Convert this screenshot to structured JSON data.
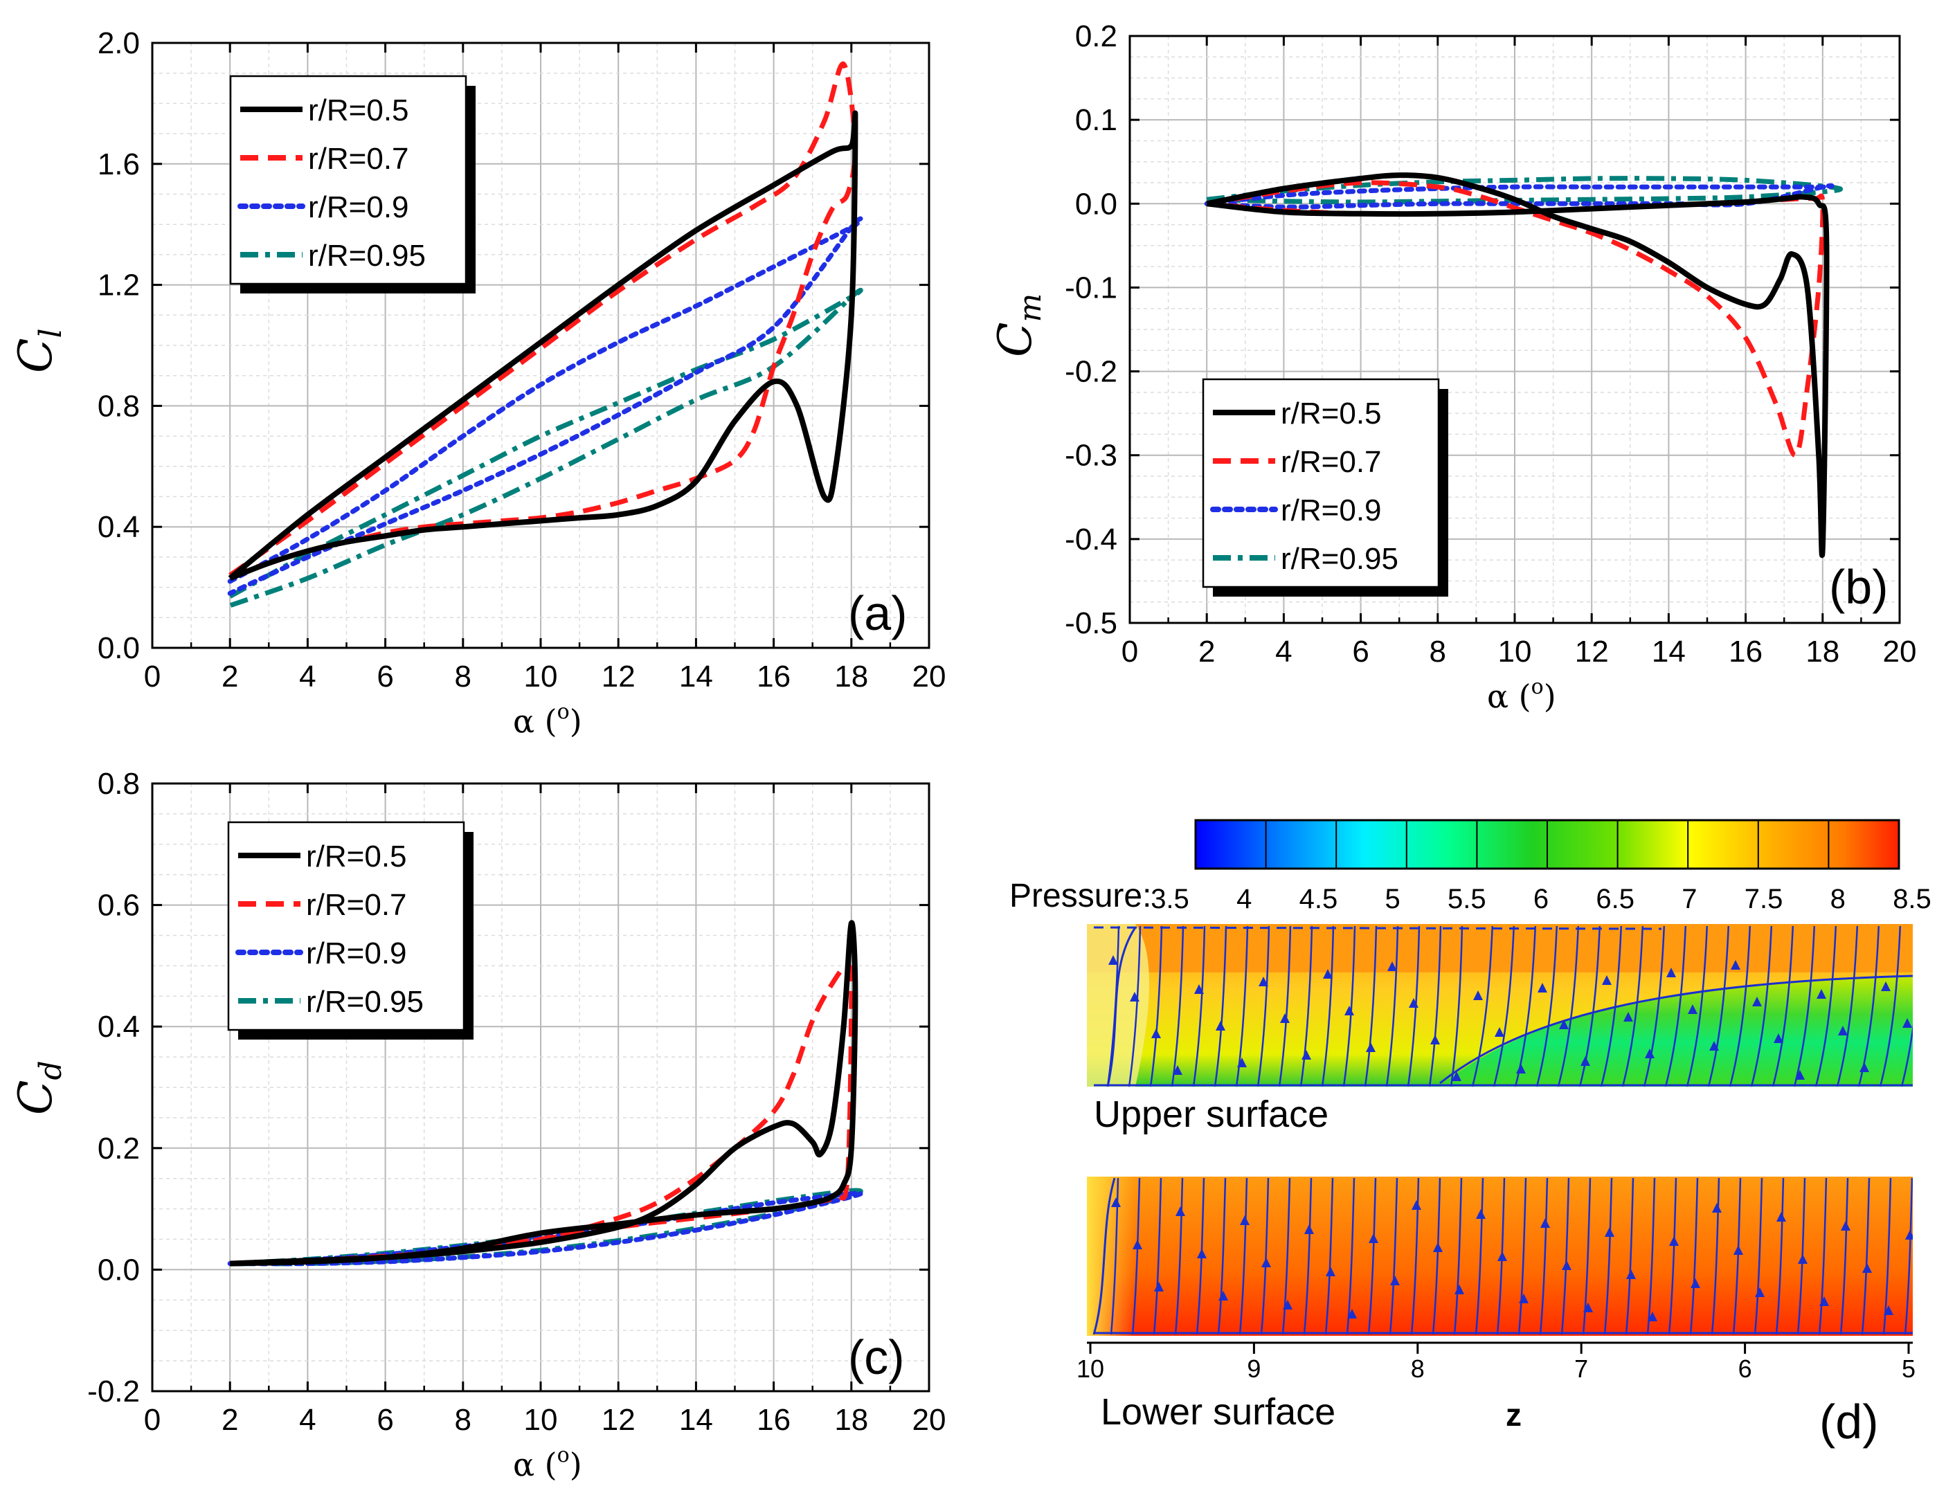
{
  "chart_data": [
    {
      "id": "a",
      "type": "line",
      "panel_label": "(a)",
      "ylabel_main": "C",
      "ylabel_sub": "l",
      "xlabel": "α (o)",
      "xlabel_main": "α (",
      "xlabel_sup": "o",
      "xlabel_close": ")",
      "xlim": [
        0,
        20
      ],
      "ylim": [
        0.0,
        2.0
      ],
      "xticks": [
        0,
        2,
        4,
        6,
        8,
        10,
        12,
        14,
        16,
        18,
        20
      ],
      "yticks": [
        "0.0",
        "0.4",
        "0.8",
        "1.2",
        "1.6",
        "2.0"
      ],
      "ytick_values": [
        0.0,
        0.4,
        0.8,
        1.2,
        1.6,
        2.0
      ],
      "legend": [
        "r/R=0.5",
        "r/R=0.7",
        "r/R=0.9",
        "r/R=0.95"
      ],
      "series": [
        {
          "name": "r/R=0.5",
          "color": "#000000",
          "style": "solid",
          "x": [
            2,
            4,
            6,
            8,
            10,
            12,
            14,
            16,
            17.5,
            18,
            18.1,
            18,
            17.6,
            17.3,
            16.6,
            16,
            15,
            14,
            13,
            12,
            11,
            10,
            9,
            8,
            7,
            6,
            5,
            4,
            3,
            2
          ],
          "y": [
            0.23,
            0.44,
            0.63,
            0.82,
            1.01,
            1.2,
            1.38,
            1.53,
            1.64,
            1.66,
            1.74,
            1.1,
            0.6,
            0.5,
            0.8,
            0.88,
            0.75,
            0.55,
            0.47,
            0.44,
            0.43,
            0.42,
            0.41,
            0.4,
            0.39,
            0.37,
            0.35,
            0.32,
            0.28,
            0.23
          ]
        },
        {
          "name": "r/R=0.7",
          "color": "#ff1a1a",
          "style": "dashed",
          "x": [
            2,
            4,
            6,
            8,
            10,
            12,
            14,
            15.5,
            16.5,
            17.3,
            17.8,
            18.1,
            17.9,
            17.5,
            17,
            16.5,
            16,
            15.5,
            15,
            14,
            13,
            12,
            11,
            10,
            9,
            8,
            7,
            6,
            5,
            4,
            3,
            2
          ],
          "y": [
            0.24,
            0.42,
            0.61,
            0.8,
            0.99,
            1.18,
            1.35,
            1.46,
            1.55,
            1.74,
            1.93,
            1.66,
            1.5,
            1.45,
            1.3,
            1.1,
            0.93,
            0.72,
            0.62,
            0.56,
            0.52,
            0.48,
            0.45,
            0.43,
            0.42,
            0.41,
            0.4,
            0.38,
            0.35,
            0.32,
            0.28,
            0.24
          ]
        },
        {
          "name": "r/R=0.9",
          "color": "#1f2fe6",
          "style": "dotted",
          "x": [
            2,
            4,
            6,
            8,
            10,
            12,
            14,
            16,
            18,
            18,
            16,
            14,
            12,
            10,
            8,
            6,
            4,
            2
          ],
          "y": [
            0.22,
            0.36,
            0.52,
            0.7,
            0.87,
            1.01,
            1.13,
            1.26,
            1.39,
            1.39,
            1.06,
            0.91,
            0.77,
            0.64,
            0.52,
            0.41,
            0.3,
            0.18
          ]
        },
        {
          "name": "r/R=0.95",
          "color": "#00807a",
          "style": "dashdot",
          "x": [
            2,
            4,
            6,
            8,
            10,
            12,
            14,
            16,
            18,
            18,
            16,
            14,
            12,
            10,
            8,
            6,
            4,
            2
          ],
          "y": [
            0.17,
            0.31,
            0.44,
            0.57,
            0.7,
            0.81,
            0.92,
            1.02,
            1.16,
            1.16,
            0.93,
            0.82,
            0.69,
            0.56,
            0.44,
            0.34,
            0.23,
            0.14
          ]
        }
      ]
    },
    {
      "id": "b",
      "type": "line",
      "panel_label": "(b)",
      "ylabel_main": "C",
      "ylabel_sub": "m",
      "xlabel": "α (o)",
      "xlabel_main": "α (",
      "xlabel_sup": "o",
      "xlabel_close": ")",
      "xlim": [
        0,
        20
      ],
      "ylim": [
        -0.5,
        0.2
      ],
      "xticks": [
        0,
        2,
        4,
        6,
        8,
        10,
        12,
        14,
        16,
        18,
        20
      ],
      "yticks": [
        "0.2",
        "0.1",
        "0.0",
        "-0.1",
        "-0.2",
        "-0.3",
        "-0.4",
        "-0.5"
      ],
      "ytick_values": [
        0.2,
        0.1,
        0.0,
        -0.1,
        -0.2,
        -0.3,
        -0.4,
        -0.5
      ],
      "legend": [
        "r/R=0.5",
        "r/R=0.7",
        "r/R=0.9",
        "r/R=0.95"
      ],
      "series": [
        {
          "name": "r/R=0.5",
          "color": "#000000",
          "style": "solid",
          "x": [
            2,
            4,
            6,
            7,
            8,
            9,
            10,
            11,
            12,
            13,
            14,
            15,
            16,
            16.5,
            16.9,
            17.2,
            17.6,
            17.9,
            18.0,
            18.1,
            17.9,
            17.5,
            17,
            16,
            14,
            12,
            10,
            8,
            6,
            4,
            2
          ],
          "y": [
            0.0,
            0.018,
            0.03,
            0.034,
            0.031,
            0.02,
            0.005,
            -0.015,
            -0.03,
            -0.045,
            -0.07,
            -0.1,
            -0.12,
            -0.12,
            -0.09,
            -0.06,
            -0.1,
            -0.3,
            -0.41,
            -0.05,
            0.0,
            0.008,
            0.006,
            0.002,
            -0.002,
            -0.006,
            -0.01,
            -0.012,
            -0.012,
            -0.01,
            0.0
          ]
        },
        {
          "name": "r/R=0.7",
          "color": "#ff1a1a",
          "style": "dashed",
          "x": [
            2,
            4,
            6,
            8,
            9,
            10,
            11,
            12,
            13,
            14,
            15,
            16,
            16.8,
            17.3,
            17.6,
            17.9,
            18.0,
            17.8,
            17,
            16,
            14,
            12,
            10,
            8,
            6,
            4,
            2
          ],
          "y": [
            0.0,
            0.015,
            0.025,
            0.02,
            0.01,
            -0.005,
            -0.02,
            -0.035,
            -0.055,
            -0.08,
            -0.11,
            -0.16,
            -0.24,
            -0.3,
            -0.22,
            -0.1,
            0.0,
            0.006,
            0.005,
            0.002,
            -0.002,
            -0.006,
            -0.01,
            -0.012,
            -0.012,
            -0.008,
            0.0
          ]
        },
        {
          "name": "r/R=0.9",
          "color": "#1f2fe6",
          "style": "dotted",
          "x": [
            2,
            4,
            6,
            8,
            10,
            12,
            14,
            16,
            18,
            18,
            16,
            14,
            12,
            10,
            8,
            6,
            4,
            2
          ],
          "y": [
            0.0,
            0.01,
            0.015,
            0.018,
            0.02,
            0.02,
            0.02,
            0.02,
            0.02,
            0.02,
            0.0,
            0.0,
            0.0,
            0.0,
            0.0,
            -0.002,
            -0.004,
            0.0
          ]
        },
        {
          "name": "r/R=0.95",
          "color": "#00807a",
          "style": "dashdot",
          "x": [
            2,
            4,
            6,
            8,
            10,
            12,
            14,
            16,
            18.2,
            18.2,
            16,
            14,
            12,
            10,
            8,
            6,
            4,
            2
          ],
          "y": [
            0.005,
            0.015,
            0.022,
            0.026,
            0.028,
            0.03,
            0.03,
            0.028,
            0.02,
            0.015,
            0.008,
            0.006,
            0.005,
            0.004,
            0.003,
            0.002,
            0.003,
            0.005
          ]
        }
      ]
    },
    {
      "id": "c",
      "type": "line",
      "panel_label": "(c)",
      "ylabel_main": "C",
      "ylabel_sub": "d",
      "xlabel": "α (o)",
      "xlabel_main": "α (",
      "xlabel_sup": "o",
      "xlabel_close": ")",
      "xlim": [
        0,
        20
      ],
      "ylim": [
        -0.2,
        0.8
      ],
      "xticks": [
        0,
        2,
        4,
        6,
        8,
        10,
        12,
        14,
        16,
        18,
        20
      ],
      "yticks": [
        "0.8",
        "0.6",
        "0.4",
        "0.2",
        "0.0",
        "-0.2"
      ],
      "ytick_values": [
        0.8,
        0.6,
        0.4,
        0.2,
        0.0,
        -0.2
      ],
      "legend": [
        "r/R=0.5",
        "r/R=0.7",
        "r/R=0.9",
        "r/R=0.95"
      ],
      "series": [
        {
          "name": "r/R=0.5",
          "color": "#000000",
          "style": "solid",
          "x": [
            2,
            4,
            6,
            8,
            10,
            12,
            13,
            14,
            15,
            16,
            16.5,
            17,
            17.2,
            17.5,
            17.8,
            18.0,
            18.1,
            18.0,
            17.8,
            17.5,
            17,
            16,
            14,
            12,
            10,
            8,
            6,
            4,
            2
          ],
          "y": [
            0.01,
            0.015,
            0.02,
            0.03,
            0.045,
            0.07,
            0.095,
            0.14,
            0.2,
            0.235,
            0.24,
            0.21,
            0.19,
            0.24,
            0.4,
            0.57,
            0.45,
            0.2,
            0.14,
            0.12,
            0.11,
            0.1,
            0.09,
            0.075,
            0.06,
            0.035,
            0.02,
            0.013,
            0.01
          ]
        },
        {
          "name": "r/R=0.7",
          "color": "#ff1a1a",
          "style": "dashed",
          "x": [
            2,
            4,
            6,
            8,
            10,
            12,
            13,
            14,
            15,
            16,
            16.5,
            17,
            17.5,
            17.9,
            18.0,
            17.9,
            17.6,
            17,
            16,
            14,
            12,
            10,
            8,
            6,
            4,
            2
          ],
          "y": [
            0.01,
            0.015,
            0.022,
            0.032,
            0.05,
            0.085,
            0.11,
            0.15,
            0.2,
            0.26,
            0.32,
            0.41,
            0.47,
            0.5,
            0.45,
            0.15,
            0.12,
            0.11,
            0.1,
            0.085,
            0.07,
            0.05,
            0.035,
            0.02,
            0.013,
            0.01
          ]
        },
        {
          "name": "r/R=0.9",
          "color": "#1f2fe6",
          "style": "dotted",
          "x": [
            2,
            4,
            6,
            8,
            10,
            12,
            14,
            16,
            18,
            18,
            16,
            14,
            12,
            10,
            8,
            6,
            4,
            2
          ],
          "y": [
            0.01,
            0.016,
            0.025,
            0.038,
            0.052,
            0.07,
            0.09,
            0.11,
            0.125,
            0.12,
            0.09,
            0.065,
            0.045,
            0.03,
            0.02,
            0.013,
            0.01,
            0.01
          ]
        },
        {
          "name": "r/R=0.95",
          "color": "#00807a",
          "style": "dashdot",
          "x": [
            2,
            4,
            6,
            8,
            10,
            12,
            14,
            16,
            18,
            18,
            16,
            14,
            12,
            10,
            8,
            6,
            4,
            2
          ],
          "y": [
            0.01,
            0.017,
            0.027,
            0.04,
            0.055,
            0.073,
            0.093,
            0.113,
            0.13,
            0.122,
            0.092,
            0.068,
            0.048,
            0.032,
            0.021,
            0.014,
            0.01,
            0.01
          ]
        }
      ]
    }
  ],
  "panel_d": {
    "panel_label": "(d)",
    "colorbar_label": "Pressure:",
    "colorbar_ticks": [
      "3.5",
      "4",
      "4.5",
      "5",
      "5.5",
      "6",
      "6.5",
      "7",
      "7.5",
      "8",
      "8.5"
    ],
    "colorbar_colors": [
      "#0000ff",
      "#00aaff",
      "#00f0ff",
      "#00ff90",
      "#1cdc1c",
      "#60e000",
      "#b8ee00",
      "#ffff00",
      "#ffb000",
      "#ff7a00",
      "#ff2a00"
    ],
    "upper_label": "Upper surface",
    "lower_label": "Lower surface",
    "z_ticks": [
      "10",
      "9",
      "8",
      "7",
      "6",
      "5"
    ],
    "z_label": "z",
    "streamline_color": "#1a2fd0"
  }
}
